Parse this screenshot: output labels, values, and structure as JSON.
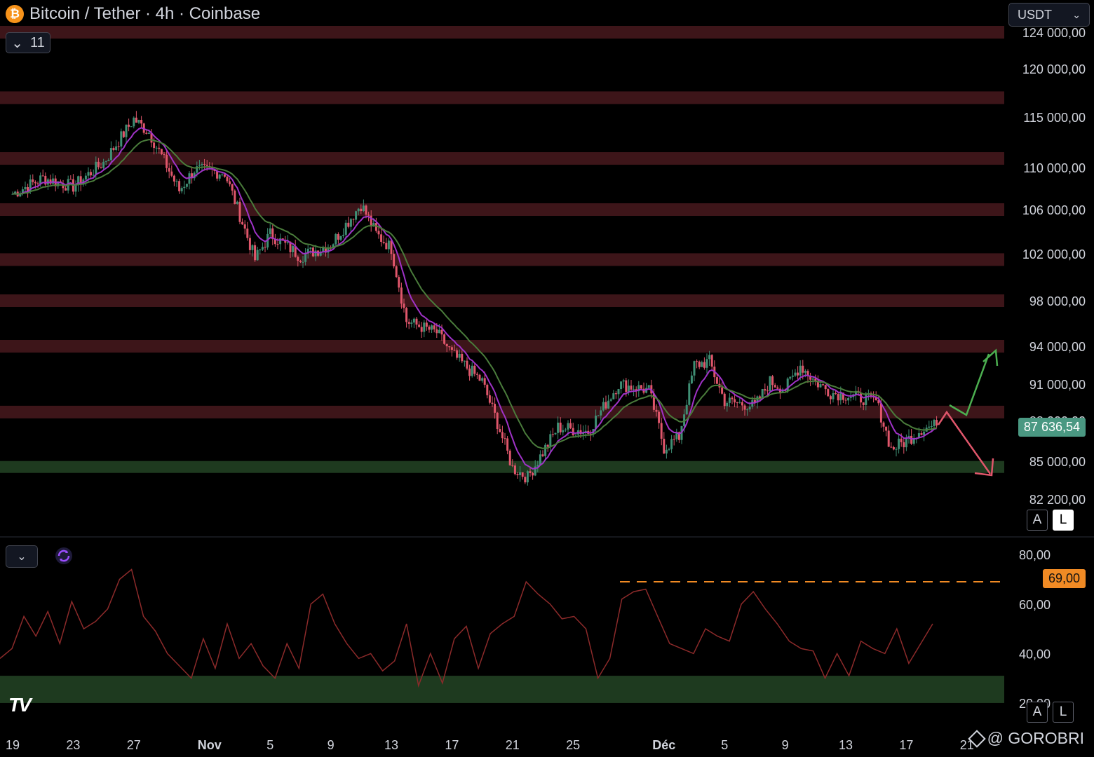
{
  "header": {
    "title": "Bitcoin / Tether · 4h · Coinbase",
    "indicator_count": "11",
    "currency": "USDT"
  },
  "price_badge": "87 636,54",
  "rsi_badge": "69,00",
  "scale_buttons": {
    "a": "A",
    "l": "L"
  },
  "watermark": "@ GOROBRI",
  "colors": {
    "background": "#000000",
    "resistance_zone": "#3d1519",
    "support_zone": "#1e3a1f",
    "candle_up": "#3f8f74",
    "candle_down": "#e0566b",
    "ma_fast": "#a032c8",
    "ma_slow": "#4a7c3b",
    "rsi_line": "#8c2a2a",
    "rsi_level": "#f08a24",
    "arrow_up": "#4caf50",
    "arrow_down": "#e0566b"
  },
  "chart_data": [
    {
      "type": "candlestick",
      "title": "Bitcoin / Tether · 4h · Coinbase",
      "x_ticks": [
        "19",
        "23",
        "27",
        "Nov",
        "5",
        "9",
        "13",
        "17",
        "21",
        "25",
        "Déc",
        "5",
        "9",
        "13",
        "17",
        "21"
      ],
      "y_ticks": [
        "124 000,00",
        "120 000,00",
        "115 000,00",
        "110 000,00",
        "106 000,00",
        "102 000,00",
        "98 000,00",
        "94 000,00",
        "91 000,00",
        "88 000,00",
        "85 000,00",
        "82 200,00"
      ],
      "ylim": [
        80000,
        125000
      ],
      "close_path": [
        [
          "Oct 19",
          107500
        ],
        [
          "Oct 21",
          109000
        ],
        [
          "Oct 23",
          108200
        ],
        [
          "Oct 25",
          110500
        ],
        [
          "Oct 27",
          114800
        ],
        [
          "Oct 28",
          113500
        ],
        [
          "Oct 30",
          107800
        ],
        [
          "Oct 31",
          109800
        ],
        [
          "Nov 2",
          109500
        ],
        [
          "Nov 4",
          101500
        ],
        [
          "Nov 5",
          103800
        ],
        [
          "Nov 7",
          101800
        ],
        [
          "Nov 9",
          102800
        ],
        [
          "Nov 11",
          106500
        ],
        [
          "Nov 12",
          103800
        ],
        [
          "Nov 13",
          102500
        ],
        [
          "Nov 14",
          96200
        ],
        [
          "Nov 16",
          95200
        ],
        [
          "Nov 17",
          93400
        ],
        [
          "Nov 19",
          91200
        ],
        [
          "Nov 21",
          84500
        ],
        [
          "Nov 22",
          83800
        ],
        [
          "Nov 24",
          87500
        ],
        [
          "Nov 26",
          87200
        ],
        [
          "Nov 28",
          91000
        ],
        [
          "Nov 30",
          90500
        ],
        [
          "Dec 1",
          86000
        ],
        [
          "Dec 2",
          86800
        ],
        [
          "Dec 3",
          92500
        ],
        [
          "Dec 4",
          92800
        ],
        [
          "Dec 5",
          89600
        ],
        [
          "Dec 7",
          89200
        ],
        [
          "Dec 8",
          91200
        ],
        [
          "Dec 9",
          90600
        ],
        [
          "Dec 10",
          92500
        ],
        [
          "Dec 11",
          91200
        ],
        [
          "Dec 12",
          90300
        ],
        [
          "Dec 13",
          90100
        ],
        [
          "Dec 15",
          89600
        ],
        [
          "Dec 16",
          85900
        ],
        [
          "Dec 17",
          86500
        ],
        [
          "Dec 18",
          87400
        ],
        [
          "Dec 19",
          87636.54
        ]
      ],
      "last_price": 87636.54,
      "resistance_zones": [
        124000,
        117000,
        110900,
        106000,
        101500,
        98000,
        94000,
        88700
      ],
      "support_zones": [
        84600
      ],
      "moving_averages": [
        "fast (purple)",
        "slow (green)"
      ],
      "projections": [
        "bullish arrow toward 94 000",
        "bearish arrow toward 84 500"
      ]
    },
    {
      "type": "line",
      "title": "",
      "y_ticks": [
        "80,00",
        "60,00",
        "40,00",
        "20,00"
      ],
      "ylim": [
        18,
        86
      ],
      "level": 69,
      "oversold_zone": [
        20,
        31
      ],
      "values": [
        38,
        42,
        55,
        47,
        57,
        44,
        61,
        50,
        53,
        58,
        70,
        74,
        55,
        49,
        40,
        35,
        30,
        46,
        34,
        52,
        38,
        44,
        35,
        30,
        44,
        34,
        60,
        64,
        52,
        44,
        38,
        40,
        33,
        37,
        52,
        27,
        40,
        28,
        46,
        51,
        34,
        48,
        52,
        55,
        69,
        64,
        60,
        54,
        55,
        50,
        30,
        38,
        62,
        65,
        66,
        55,
        44,
        42,
        40,
        50,
        47,
        45,
        60,
        65,
        58,
        52,
        45,
        42,
        41,
        30,
        40,
        31,
        45,
        42,
        40,
        50,
        36,
        44,
        52
      ]
    }
  ]
}
